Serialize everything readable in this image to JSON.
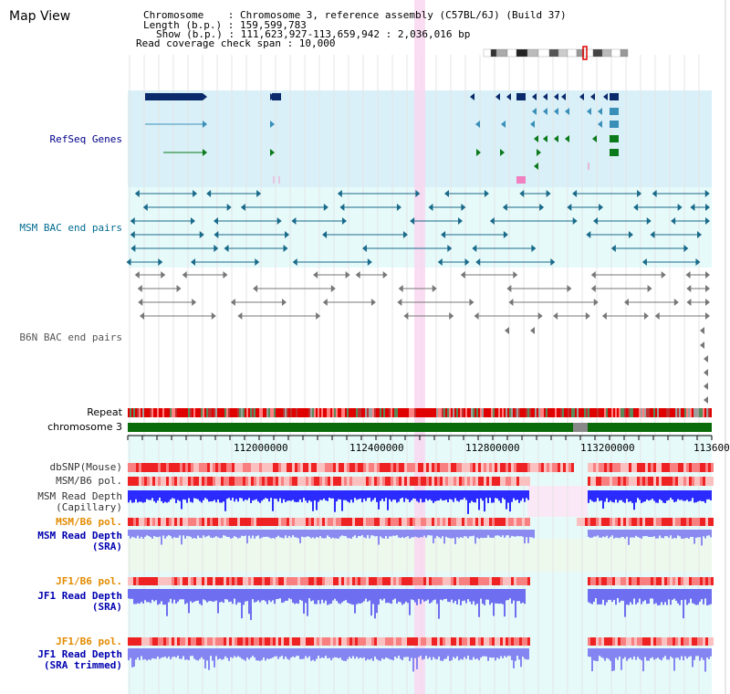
{
  "header": {
    "view_title": "Map View",
    "chromosome_line": "Chromosome    : Chromosome 3, reference assembly (C57BL/6J) (Build 37)",
    "length_line": "Length (b.p.) : 159,599,783",
    "show_line": "Show (b.p.) : 111,623,927-113,659,942 : 2,036,016 bp",
    "coverage_line": "Read coverage check span : 10,000"
  },
  "tracks": {
    "refseq": "RefSeq Genes",
    "msm_bac": "MSM BAC end pairs",
    "b6n_bac": "B6N BAC end pairs",
    "repeat": "Repeat",
    "chromosome": "chromosome 3",
    "dbsnp": "dbSNP(Mouse)",
    "msm_b6_pol_1": "MSM/B6 pol.",
    "msm_depth_cap_1": "MSM Read Depth",
    "msm_depth_cap_2": "(Capillary)",
    "msm_b6_pol_2": "MSM/B6 pol.",
    "msm_depth_sra_1": "MSM Read Depth",
    "msm_depth_sra_2": "(SRA)",
    "jf1_b6_pol_1": "JF1/B6 pol.",
    "jf1_depth_sra_1": "JF1 Read Depth",
    "jf1_depth_sra_2": "(SRA)",
    "jf1_b6_pol_2": "JF1/B6 pol.",
    "jf1_depth_trim_1": "JF1 Read Depth",
    "jf1_depth_trim_2": "(SRA trimmed)"
  },
  "axis": {
    "ticks": [
      "112000000",
      "112400000",
      "112800000",
      "113200000",
      "113600"
    ]
  },
  "colors": {
    "refseq_bg": "#d9f0f8",
    "msm_bg": "#e6fafa",
    "gene_dark": "#0a2a6b",
    "gene_mid": "#3a8fb8",
    "gene_green": "#0a7a1a",
    "msm_pair": "#1a6a8a",
    "b6n_pair": "#777777",
    "highlight": "#f9d7f0",
    "chromosome": "#0a6b0a"
  }
}
